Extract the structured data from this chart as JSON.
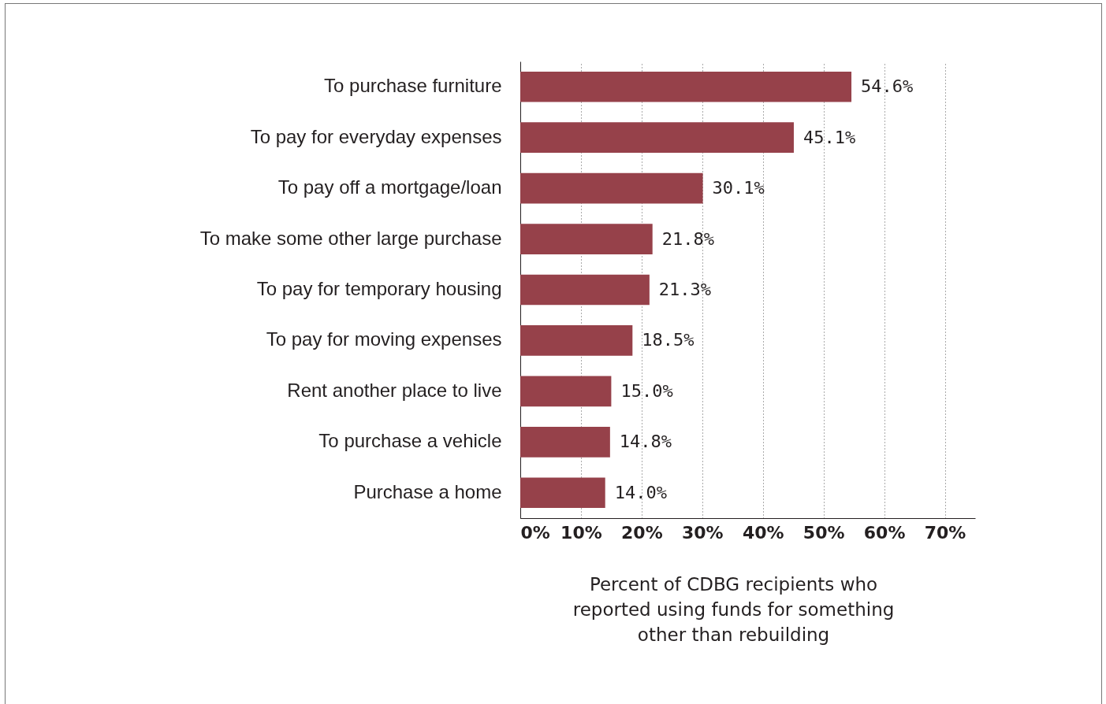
{
  "chart_data": {
    "type": "bar",
    "orientation": "horizontal",
    "categories": [
      "To purchase furniture",
      "To pay for everyday expenses",
      "To pay off a mortgage/loan",
      "To make some other large purchase",
      "To pay for temporary housing",
      "To pay for moving expenses",
      "Rent another place to live",
      "To purchase a vehicle",
      "Purchase a home"
    ],
    "values": [
      54.6,
      45.1,
      30.1,
      21.8,
      21.3,
      18.5,
      15.0,
      14.8,
      14.0
    ],
    "value_labels": [
      "54.6%",
      "45.1%",
      "30.1%",
      "21.8%",
      "21.3%",
      "18.5%",
      "15.0%",
      "14.8%",
      "14.0%"
    ],
    "color": "#96414a",
    "xlabel": "Percent of CDBG recipients who\nreported using funds for something\nother than rebuilding",
    "xlim": [
      0,
      75
    ],
    "xticks": [
      {
        "value": 0,
        "label": "0%"
      },
      {
        "value": 10,
        "label": "10%"
      },
      {
        "value": 20,
        "label": "20%"
      },
      {
        "value": 30,
        "label": "30%"
      },
      {
        "value": 40,
        "label": "40%"
      },
      {
        "value": 50,
        "label": "50%"
      },
      {
        "value": 60,
        "label": "60%"
      },
      {
        "value": 70,
        "label": "70%"
      }
    ],
    "grid": "x"
  }
}
